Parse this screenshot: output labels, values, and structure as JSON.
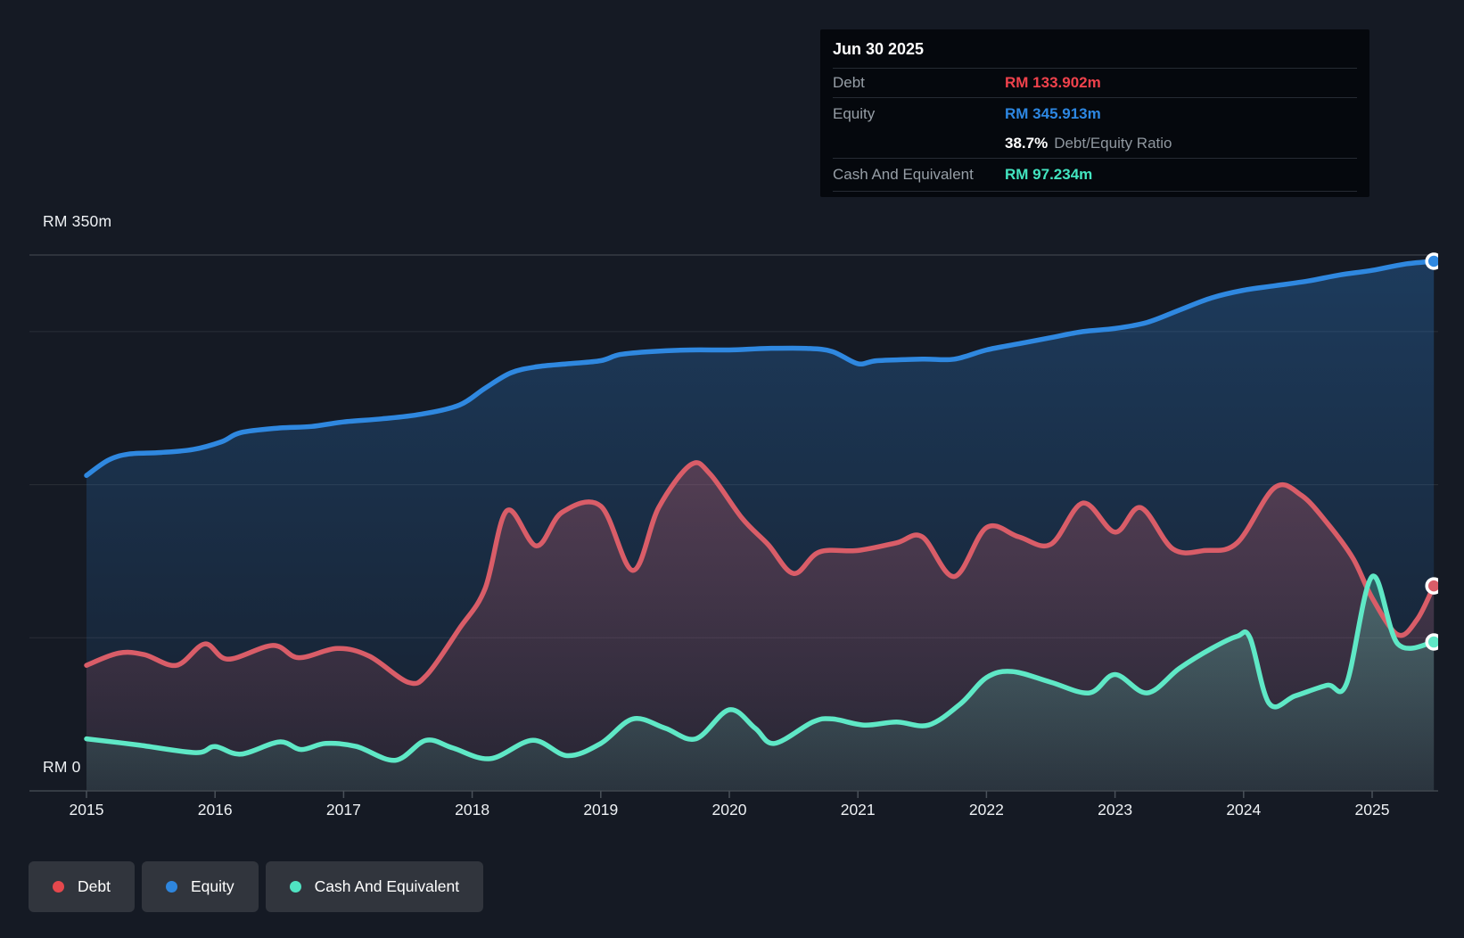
{
  "tooltip": {
    "date": "Jun 30 2025",
    "debt_label": "Debt",
    "debt_value": "RM 133.902m",
    "equity_label": "Equity",
    "equity_value": "RM 345.913m",
    "ratio_value": "38.7%",
    "ratio_label": "Debt/Equity Ratio",
    "cash_label": "Cash And Equivalent",
    "cash_value": "RM 97.234m"
  },
  "y_axis": {
    "top": "RM 350m",
    "zero": "RM 0"
  },
  "x_axis": {
    "years": [
      "2015",
      "2016",
      "2017",
      "2018",
      "2019",
      "2020",
      "2021",
      "2022",
      "2023",
      "2024",
      "2025"
    ]
  },
  "legend": {
    "items": [
      {
        "label": "Debt",
        "color": "#e5484d"
      },
      {
        "label": "Equity",
        "color": "#2e86de"
      },
      {
        "label": "Cash And Equivalent",
        "color": "#50e3c2"
      }
    ]
  },
  "chart_data": {
    "type": "area",
    "title": "Debt to Equity history (RM millions)",
    "x_unit": "year",
    "xlim": [
      2015,
      2025.5
    ],
    "ylim": [
      0,
      350
    ],
    "grid_values": [
      350,
      300,
      200,
      100
    ],
    "baseline_value": 0,
    "legend_position": "bottom-left",
    "last_point_date": "Jun 30 2025",
    "series": [
      {
        "name": "Equity",
        "color": "#2f88e0",
        "fill_top_opacity": 0.3,
        "fill_bottom_opacity": 0.05,
        "points": [
          [
            2015.0,
            206
          ],
          [
            2015.17,
            216
          ],
          [
            2015.33,
            220
          ],
          [
            2015.58,
            221
          ],
          [
            2015.83,
            223
          ],
          [
            2016.05,
            228
          ],
          [
            2016.2,
            234
          ],
          [
            2016.5,
            237
          ],
          [
            2016.75,
            238
          ],
          [
            2017.0,
            241
          ],
          [
            2017.3,
            243
          ],
          [
            2017.6,
            246
          ],
          [
            2017.9,
            252
          ],
          [
            2018.1,
            263
          ],
          [
            2018.3,
            273
          ],
          [
            2018.5,
            277
          ],
          [
            2018.75,
            279
          ],
          [
            2019.0,
            281
          ],
          [
            2019.15,
            285
          ],
          [
            2019.4,
            287
          ],
          [
            2019.7,
            288
          ],
          [
            2020.0,
            288
          ],
          [
            2020.3,
            289
          ],
          [
            2020.6,
            289
          ],
          [
            2020.8,
            287
          ],
          [
            2021.0,
            279
          ],
          [
            2021.15,
            281
          ],
          [
            2021.5,
            282
          ],
          [
            2021.75,
            282
          ],
          [
            2022.0,
            288
          ],
          [
            2022.25,
            292
          ],
          [
            2022.5,
            296
          ],
          [
            2022.75,
            300
          ],
          [
            2023.0,
            302
          ],
          [
            2023.25,
            306
          ],
          [
            2023.5,
            314
          ],
          [
            2023.75,
            322
          ],
          [
            2024.0,
            327
          ],
          [
            2024.25,
            330
          ],
          [
            2024.5,
            333
          ],
          [
            2024.75,
            337
          ],
          [
            2025.0,
            340
          ],
          [
            2025.25,
            344
          ],
          [
            2025.48,
            345.913
          ]
        ]
      },
      {
        "name": "Debt",
        "color": "#d95d68",
        "fill_top_opacity": 0.3,
        "fill_bottom_opacity": 0.08,
        "points": [
          [
            2015.0,
            82
          ],
          [
            2015.25,
            90
          ],
          [
            2015.45,
            89
          ],
          [
            2015.7,
            82
          ],
          [
            2015.92,
            96
          ],
          [
            2016.1,
            86
          ],
          [
            2016.45,
            95
          ],
          [
            2016.65,
            87
          ],
          [
            2016.95,
            93
          ],
          [
            2017.2,
            88
          ],
          [
            2017.5,
            71
          ],
          [
            2017.65,
            76
          ],
          [
            2017.9,
            106
          ],
          [
            2018.1,
            132
          ],
          [
            2018.27,
            183
          ],
          [
            2018.5,
            160
          ],
          [
            2018.7,
            182
          ],
          [
            2019.0,
            186
          ],
          [
            2019.25,
            144
          ],
          [
            2019.45,
            185
          ],
          [
            2019.7,
            213
          ],
          [
            2019.85,
            207
          ],
          [
            2020.1,
            178
          ],
          [
            2020.3,
            161
          ],
          [
            2020.5,
            142
          ],
          [
            2020.7,
            156
          ],
          [
            2021.0,
            157
          ],
          [
            2021.3,
            162
          ],
          [
            2021.5,
            166
          ],
          [
            2021.75,
            140
          ],
          [
            2022.0,
            172
          ],
          [
            2022.25,
            166
          ],
          [
            2022.5,
            161
          ],
          [
            2022.75,
            188
          ],
          [
            2023.0,
            169
          ],
          [
            2023.2,
            185
          ],
          [
            2023.45,
            158
          ],
          [
            2023.7,
            157
          ],
          [
            2023.95,
            162
          ],
          [
            2024.24,
            198
          ],
          [
            2024.45,
            193
          ],
          [
            2024.65,
            175
          ],
          [
            2024.85,
            152
          ],
          [
            2025.0,
            126
          ],
          [
            2025.2,
            102
          ],
          [
            2025.35,
            112
          ],
          [
            2025.48,
            133.902
          ]
        ]
      },
      {
        "name": "Cash And Equivalent",
        "color": "#5fe8c6",
        "fill_top_opacity": 0.28,
        "fill_bottom_opacity": 0.08,
        "points": [
          [
            2015.0,
            34
          ],
          [
            2015.4,
            30
          ],
          [
            2015.85,
            25
          ],
          [
            2016.0,
            29
          ],
          [
            2016.2,
            24
          ],
          [
            2016.5,
            32
          ],
          [
            2016.67,
            27
          ],
          [
            2016.86,
            31
          ],
          [
            2017.1,
            29
          ],
          [
            2017.4,
            20
          ],
          [
            2017.64,
            33
          ],
          [
            2017.85,
            28
          ],
          [
            2018.14,
            21
          ],
          [
            2018.47,
            33
          ],
          [
            2018.74,
            23
          ],
          [
            2019.0,
            31
          ],
          [
            2019.25,
            47
          ],
          [
            2019.5,
            41
          ],
          [
            2019.74,
            34
          ],
          [
            2020.0,
            53
          ],
          [
            2020.2,
            41
          ],
          [
            2020.35,
            31
          ],
          [
            2020.65,
            45
          ],
          [
            2020.8,
            47
          ],
          [
            2021.05,
            43
          ],
          [
            2021.3,
            45
          ],
          [
            2021.55,
            43
          ],
          [
            2021.8,
            57
          ],
          [
            2022.0,
            74
          ],
          [
            2022.2,
            78
          ],
          [
            2022.5,
            71
          ],
          [
            2022.8,
            64
          ],
          [
            2023.0,
            76
          ],
          [
            2023.25,
            64
          ],
          [
            2023.5,
            80
          ],
          [
            2023.75,
            93
          ],
          [
            2023.95,
            101
          ],
          [
            2024.05,
            100
          ],
          [
            2024.2,
            57
          ],
          [
            2024.4,
            62
          ],
          [
            2024.65,
            69
          ],
          [
            2024.8,
            70
          ],
          [
            2025.0,
            140
          ],
          [
            2025.2,
            96
          ],
          [
            2025.48,
            97.234
          ]
        ]
      }
    ]
  }
}
